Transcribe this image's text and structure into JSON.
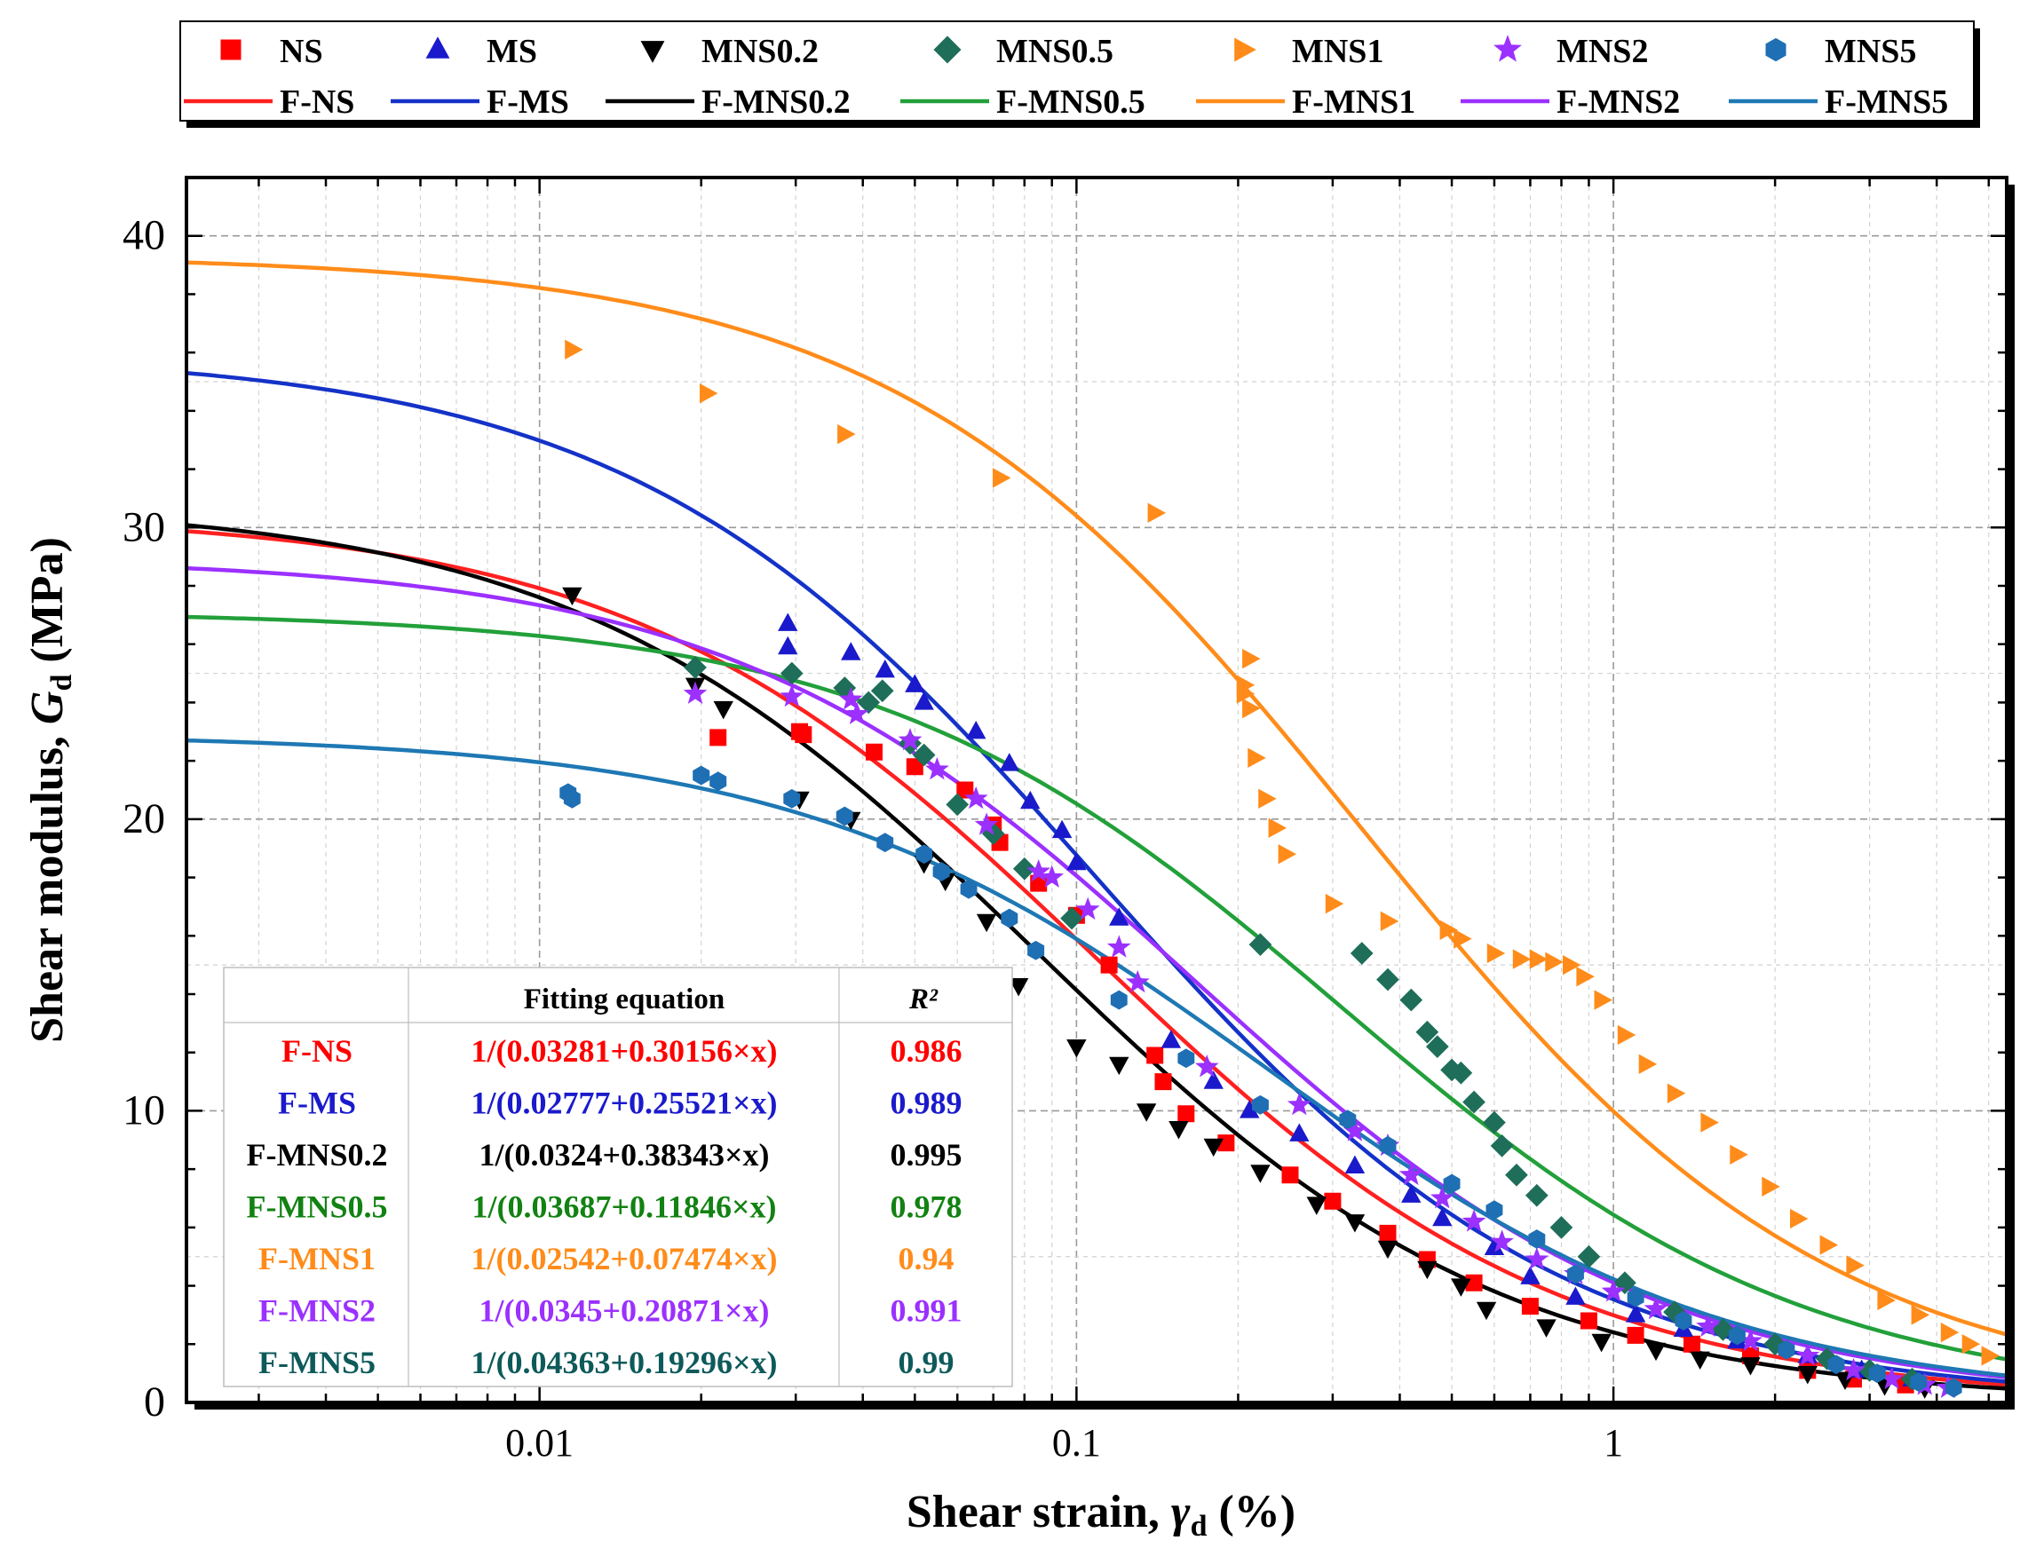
{
  "chart_data": {
    "type": "scatter",
    "xlabel_main": "Shear strain, ",
    "xlabel_sym": "γ",
    "xlabel_sub": "d",
    "xlabel_unit": " (%)",
    "ylabel_main": "Shear modulus, ",
    "ylabel_sym": "G",
    "ylabel_sub": "d",
    "ylabel_unit": " (MPa)",
    "x_scale": "log",
    "xlim": [
      0.0022,
      5.4
    ],
    "ylim": [
      0,
      42
    ],
    "x_ticks": [
      {
        "value": 0.01,
        "label": "0.01"
      },
      {
        "value": 0.1,
        "label": "0.1"
      },
      {
        "value": 1,
        "label": "1"
      }
    ],
    "y_ticks": [
      {
        "value": 0,
        "label": "0"
      },
      {
        "value": 10,
        "label": "10"
      },
      {
        "value": 20,
        "label": "20"
      },
      {
        "value": 30,
        "label": "30"
      },
      {
        "value": 40,
        "label": "40"
      }
    ],
    "grid": true,
    "legend_position": "top",
    "series": [
      {
        "name": "NS",
        "fit_name": "F-NS",
        "marker": "square",
        "color": "#ff0000",
        "fit": {
          "a": 0.03281,
          "b": 0.30156
        },
        "points": [
          [
            0.0215,
            22.8
          ],
          [
            0.0305,
            23.0
          ],
          [
            0.031,
            22.9
          ],
          [
            0.042,
            22.3
          ],
          [
            0.05,
            21.8
          ],
          [
            0.062,
            21.0
          ],
          [
            0.07,
            19.8
          ],
          [
            0.072,
            19.2
          ],
          [
            0.085,
            17.8
          ],
          [
            0.1,
            16.7
          ],
          [
            0.115,
            15.0
          ],
          [
            0.14,
            11.9
          ],
          [
            0.145,
            11.0
          ],
          [
            0.16,
            9.9
          ],
          [
            0.19,
            8.9
          ],
          [
            0.25,
            7.8
          ],
          [
            0.3,
            6.9
          ],
          [
            0.38,
            5.8
          ],
          [
            0.45,
            4.9
          ],
          [
            0.55,
            4.1
          ],
          [
            0.7,
            3.3
          ],
          [
            0.9,
            2.8
          ],
          [
            1.1,
            2.3
          ],
          [
            1.4,
            2.0
          ],
          [
            1.8,
            1.6
          ],
          [
            2.3,
            1.1
          ],
          [
            2.8,
            0.8
          ],
          [
            3.5,
            0.6
          ]
        ]
      },
      {
        "name": "MS",
        "fit_name": "F-MS",
        "marker": "triangle-up",
        "color": "#1a1acc",
        "fit": {
          "a": 0.02777,
          "b": 0.25521
        },
        "points": [
          [
            0.029,
            26.7
          ],
          [
            0.029,
            25.9
          ],
          [
            0.038,
            25.7
          ],
          [
            0.044,
            25.1
          ],
          [
            0.05,
            24.6
          ],
          [
            0.052,
            24.0
          ],
          [
            0.065,
            23.0
          ],
          [
            0.075,
            21.9
          ],
          [
            0.082,
            20.6
          ],
          [
            0.094,
            19.6
          ],
          [
            0.1,
            18.5
          ],
          [
            0.12,
            16.6
          ],
          [
            0.15,
            12.4
          ],
          [
            0.18,
            11.0
          ],
          [
            0.21,
            10.0
          ],
          [
            0.26,
            9.2
          ],
          [
            0.33,
            8.1
          ],
          [
            0.42,
            7.1
          ],
          [
            0.48,
            6.3
          ],
          [
            0.6,
            5.3
          ],
          [
            0.7,
            4.3
          ],
          [
            0.85,
            3.6
          ],
          [
            1.1,
            3.0
          ],
          [
            1.35,
            2.5
          ],
          [
            1.7,
            2.1
          ],
          [
            2.3,
            1.6
          ],
          [
            2.9,
            1.1
          ],
          [
            3.6,
            0.8
          ]
        ]
      },
      {
        "name": "MNS0.2",
        "fit_name": "F-MNS0.2",
        "marker": "triangle-down",
        "color": "#000000",
        "fit": {
          "a": 0.0324,
          "b": 0.38343
        },
        "points": [
          [
            0.0115,
            27.7
          ],
          [
            0.0195,
            24.6
          ],
          [
            0.022,
            23.8
          ],
          [
            0.0305,
            20.7
          ],
          [
            0.038,
            20.0
          ],
          [
            0.052,
            18.5
          ],
          [
            0.057,
            17.9
          ],
          [
            0.068,
            16.5
          ],
          [
            0.078,
            14.3
          ],
          [
            0.1,
            12.2
          ],
          [
            0.12,
            11.6
          ],
          [
            0.135,
            10.0
          ],
          [
            0.155,
            9.4
          ],
          [
            0.18,
            8.8
          ],
          [
            0.22,
            7.9
          ],
          [
            0.28,
            6.8
          ],
          [
            0.33,
            6.2
          ],
          [
            0.38,
            5.3
          ],
          [
            0.45,
            4.6
          ],
          [
            0.52,
            4.0
          ],
          [
            0.58,
            3.2
          ],
          [
            0.75,
            2.6
          ],
          [
            0.95,
            2.1
          ],
          [
            1.2,
            1.8
          ],
          [
            1.45,
            1.5
          ],
          [
            1.8,
            1.3
          ],
          [
            2.3,
            1.0
          ],
          [
            2.7,
            0.8
          ],
          [
            3.2,
            0.6
          ],
          [
            3.8,
            0.5
          ]
        ]
      },
      {
        "name": "MNS0.5",
        "fit_name": "F-MNS0.5",
        "marker": "diamond",
        "color": "#1e6e5a",
        "fit": {
          "a": 0.03687,
          "b": 0.11846
        },
        "points": [
          [
            0.0195,
            25.2
          ],
          [
            0.0295,
            25.0
          ],
          [
            0.037,
            24.5
          ],
          [
            0.041,
            24.0
          ],
          [
            0.0435,
            24.4
          ],
          [
            0.049,
            22.6
          ],
          [
            0.052,
            22.2
          ],
          [
            0.06,
            20.5
          ],
          [
            0.07,
            19.5
          ],
          [
            0.08,
            18.3
          ],
          [
            0.098,
            16.6
          ],
          [
            0.22,
            15.7
          ],
          [
            0.34,
            15.4
          ],
          [
            0.38,
            14.5
          ],
          [
            0.42,
            13.8
          ],
          [
            0.45,
            12.7
          ],
          [
            0.47,
            12.2
          ],
          [
            0.5,
            11.4
          ],
          [
            0.52,
            11.3
          ],
          [
            0.55,
            10.3
          ],
          [
            0.6,
            9.6
          ],
          [
            0.62,
            8.8
          ],
          [
            0.66,
            7.8
          ],
          [
            0.72,
            7.1
          ],
          [
            0.8,
            6.0
          ],
          [
            0.9,
            5.0
          ],
          [
            1.05,
            4.1
          ],
          [
            1.3,
            3.1
          ],
          [
            1.6,
            2.5
          ],
          [
            2.0,
            2.0
          ],
          [
            2.5,
            1.5
          ],
          [
            3.0,
            1.1
          ],
          [
            3.6,
            0.8
          ]
        ]
      },
      {
        "name": "MNS1",
        "fit_name": "F-MNS1",
        "marker": "triangle-right",
        "color": "#ff8c1a",
        "fit": {
          "a": 0.02542,
          "b": 0.07474
        },
        "points": [
          [
            0.0115,
            36.1
          ],
          [
            0.0205,
            34.6
          ],
          [
            0.037,
            33.2
          ],
          [
            0.072,
            31.7
          ],
          [
            0.14,
            30.5
          ],
          [
            0.21,
            25.5
          ],
          [
            0.205,
            24.6
          ],
          [
            0.205,
            24.3
          ],
          [
            0.21,
            23.8
          ],
          [
            0.215,
            22.1
          ],
          [
            0.225,
            20.7
          ],
          [
            0.235,
            19.7
          ],
          [
            0.245,
            18.8
          ],
          [
            0.3,
            17.1
          ],
          [
            0.38,
            16.5
          ],
          [
            0.49,
            16.2
          ],
          [
            0.52,
            15.9
          ],
          [
            0.6,
            15.4
          ],
          [
            0.67,
            15.2
          ],
          [
            0.72,
            15.2
          ],
          [
            0.77,
            15.1
          ],
          [
            0.83,
            15.0
          ],
          [
            0.88,
            14.6
          ],
          [
            0.95,
            13.8
          ],
          [
            1.05,
            12.6
          ],
          [
            1.15,
            11.6
          ],
          [
            1.3,
            10.6
          ],
          [
            1.5,
            9.6
          ],
          [
            1.7,
            8.5
          ],
          [
            1.95,
            7.4
          ],
          [
            2.2,
            6.3
          ],
          [
            2.5,
            5.4
          ],
          [
            2.8,
            4.7
          ],
          [
            3.2,
            3.5
          ],
          [
            3.7,
            3.0
          ],
          [
            4.2,
            2.4
          ],
          [
            4.6,
            2.0
          ],
          [
            5.0,
            1.6
          ]
        ]
      },
      {
        "name": "MNS2",
        "fit_name": "F-MNS2",
        "marker": "star",
        "color": "#9b30ff",
        "fit": {
          "a": 0.0345,
          "b": 0.20871
        },
        "points": [
          [
            0.0195,
            24.3
          ],
          [
            0.0295,
            24.2
          ],
          [
            0.038,
            24.1
          ],
          [
            0.039,
            23.6
          ],
          [
            0.049,
            22.7
          ],
          [
            0.055,
            21.7
          ],
          [
            0.065,
            20.7
          ],
          [
            0.068,
            19.8
          ],
          [
            0.085,
            18.2
          ],
          [
            0.09,
            18.0
          ],
          [
            0.105,
            16.9
          ],
          [
            0.12,
            15.6
          ],
          [
            0.13,
            14.4
          ],
          [
            0.175,
            11.5
          ],
          [
            0.26,
            10.2
          ],
          [
            0.33,
            9.3
          ],
          [
            0.38,
            8.8
          ],
          [
            0.42,
            7.8
          ],
          [
            0.48,
            7.0
          ],
          [
            0.55,
            6.2
          ],
          [
            0.62,
            5.5
          ],
          [
            0.72,
            4.9
          ],
          [
            0.85,
            4.4
          ],
          [
            1.0,
            3.8
          ],
          [
            1.2,
            3.2
          ],
          [
            1.5,
            2.6
          ],
          [
            1.8,
            2.1
          ],
          [
            2.3,
            1.6
          ],
          [
            2.8,
            1.1
          ],
          [
            3.3,
            0.8
          ],
          [
            3.8,
            0.6
          ],
          [
            4.2,
            0.5
          ]
        ]
      },
      {
        "name": "MNS5",
        "fit_name": "F-MNS5",
        "marker": "hexagon",
        "color": "#1e6fb4",
        "fit": {
          "a": 0.04363,
          "b": 0.19296
        },
        "points": [
          [
            0.0113,
            20.9
          ],
          [
            0.0115,
            20.7
          ],
          [
            0.02,
            21.5
          ],
          [
            0.0215,
            21.3
          ],
          [
            0.0295,
            20.7
          ],
          [
            0.037,
            20.1
          ],
          [
            0.044,
            19.2
          ],
          [
            0.052,
            18.8
          ],
          [
            0.056,
            18.2
          ],
          [
            0.063,
            17.6
          ],
          [
            0.075,
            16.6
          ],
          [
            0.084,
            15.5
          ],
          [
            0.12,
            13.8
          ],
          [
            0.16,
            11.8
          ],
          [
            0.22,
            10.2
          ],
          [
            0.32,
            9.7
          ],
          [
            0.38,
            8.8
          ],
          [
            0.5,
            7.5
          ],
          [
            0.6,
            6.6
          ],
          [
            0.72,
            5.6
          ],
          [
            0.85,
            4.4
          ],
          [
            1.1,
            3.6
          ],
          [
            1.35,
            2.8
          ],
          [
            1.7,
            2.3
          ],
          [
            2.1,
            1.8
          ],
          [
            2.6,
            1.3
          ],
          [
            3.1,
            1.0
          ],
          [
            3.7,
            0.7
          ],
          [
            4.3,
            0.5
          ]
        ]
      }
    ],
    "fit_table": {
      "header": {
        "name": "",
        "equation": "Fitting equation",
        "r2": "R²"
      },
      "rows": [
        {
          "name": "F-NS",
          "equation": "1/(0.03281+0.30156×x)",
          "r2": "0.986",
          "color": "#ff0000"
        },
        {
          "name": "F-MS",
          "equation": "1/(0.02777+0.25521×x)",
          "r2": "0.989",
          "color": "#1a1acc"
        },
        {
          "name": "F-MNS0.2",
          "equation": "1/(0.0324+0.38343×x)",
          "r2": "0.995",
          "color": "#000000"
        },
        {
          "name": "F-MNS0.5",
          "equation": "1/(0.03687+0.11846×x)",
          "r2": "0.978",
          "color": "#128212"
        },
        {
          "name": "F-MNS1",
          "equation": "1/(0.02542+0.07474×x)",
          "r2": "0.94",
          "color": "#ff8c1a"
        },
        {
          "name": "F-MNS2",
          "equation": "1/(0.0345+0.20871×x)",
          "r2": "0.991",
          "color": "#9b30ff"
        },
        {
          "name": "F-MNS5",
          "equation": "1/(0.04363+0.19296×x)",
          "r2": "0.99",
          "color": "#0e5a5a"
        }
      ]
    },
    "fit_line_colors": {
      "F-NS": "#ff2020",
      "F-MS": "#1432c8",
      "F-MNS0.2": "#000000",
      "F-MNS0.5": "#22a03a",
      "F-MNS1": "#ff8c1a",
      "F-MNS2": "#9b30ff",
      "F-MNS5": "#1e78b4"
    }
  }
}
